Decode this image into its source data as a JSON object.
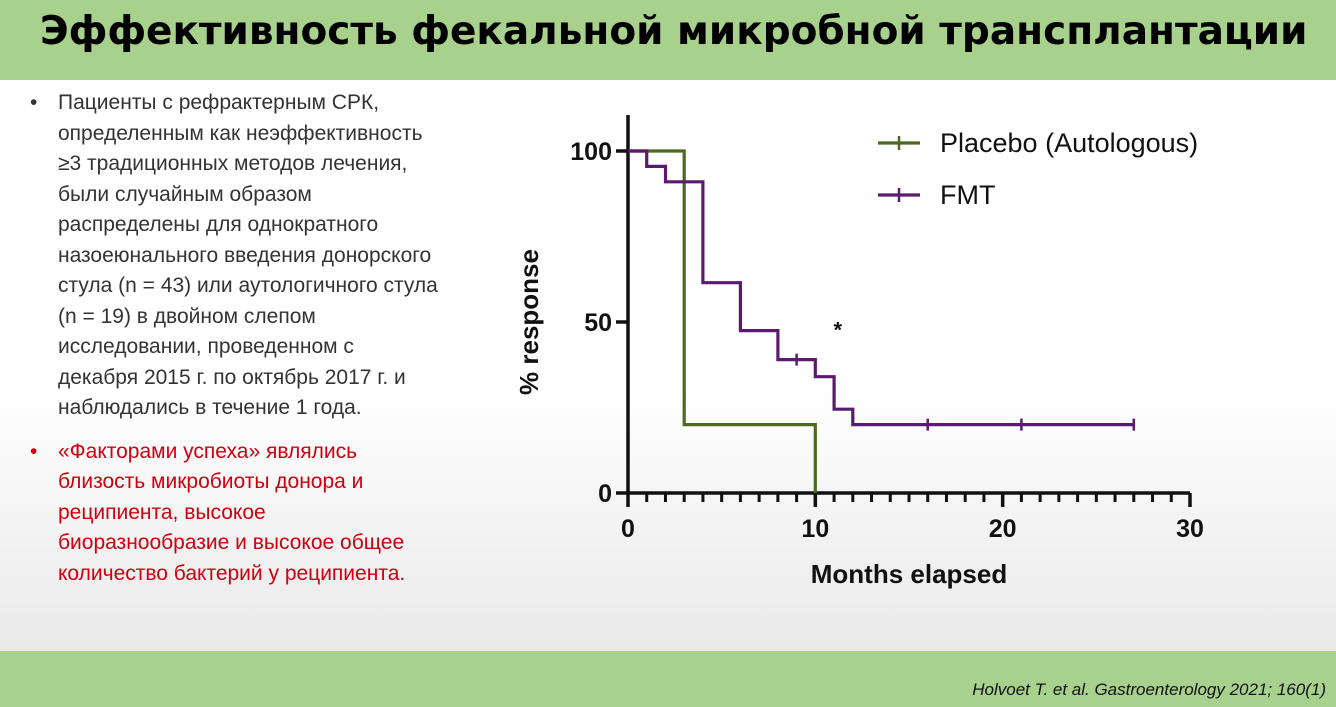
{
  "slide": {
    "title": "Эффективность фекальной микробной трансплантации",
    "bullets": [
      {
        "text": "Пациенты с рефрактерным СРК,\nопределенным как неэффективность\n≥3 традиционных методов лечения,\nбыли случайным образом\nраспределены для однократного\nназоеюнального введения донорского\nстула (n = 43) или аутологичного стула\n(n = 19) в двойном слепом\nисследовании, проведенном с\nдекабря 2015 г. по октябрь 2017 г. и\nнаблюдались в течение 1 года."
      },
      {
        "text": "«Факторами успеха» являлись\nблизость микробиоты донора и\nреципиента, высокое\nбиоразнообразие и высокое общее\nколичество бактерий у реципиента."
      }
    ],
    "citation": "Holvoet T. et al. Gastroenterology 2021; 160(1)",
    "colors": {
      "title_band": "#a9d18e",
      "highlight_text": "#d1000f",
      "body_text": "#333333"
    }
  },
  "chart_data": {
    "type": "line",
    "subtype": "kaplan-meier step",
    "xlabel": "Months elapsed",
    "ylabel": "% response",
    "xlim": [
      0,
      30
    ],
    "ylim": [
      0,
      100
    ],
    "x_ticks": [
      "0",
      "10",
      "20",
      "30"
    ],
    "y_ticks": [
      "0",
      "50",
      "100"
    ],
    "x_minor_step": 1,
    "grid": false,
    "legend_position": "top-right",
    "annotation": "*",
    "annotation_at": [
      11.2,
      49
    ],
    "series": [
      {
        "name": "Placebo (Autologous)",
        "color": "#4a6b1f",
        "points": [
          [
            0,
            100
          ],
          [
            3,
            100
          ],
          [
            3,
            20
          ],
          [
            10,
            20
          ],
          [
            10,
            0
          ]
        ],
        "censored": []
      },
      {
        "name": "FMT",
        "color": "#5b1a70",
        "points": [
          [
            0,
            100
          ],
          [
            1,
            100
          ],
          [
            1,
            95.5
          ],
          [
            2,
            95.5
          ],
          [
            2,
            91
          ],
          [
            4,
            91
          ],
          [
            4,
            61.5
          ],
          [
            6,
            61.5
          ],
          [
            6,
            47.5
          ],
          [
            8,
            47.5
          ],
          [
            8,
            39
          ],
          [
            10,
            39
          ],
          [
            10,
            34
          ],
          [
            11,
            34
          ],
          [
            11,
            24.5
          ],
          [
            12,
            24.5
          ],
          [
            12,
            20
          ],
          [
            27,
            20
          ]
        ],
        "censored": [
          [
            9,
            39
          ],
          [
            16,
            20
          ],
          [
            21,
            20
          ],
          [
            27,
            20
          ]
        ]
      }
    ]
  }
}
